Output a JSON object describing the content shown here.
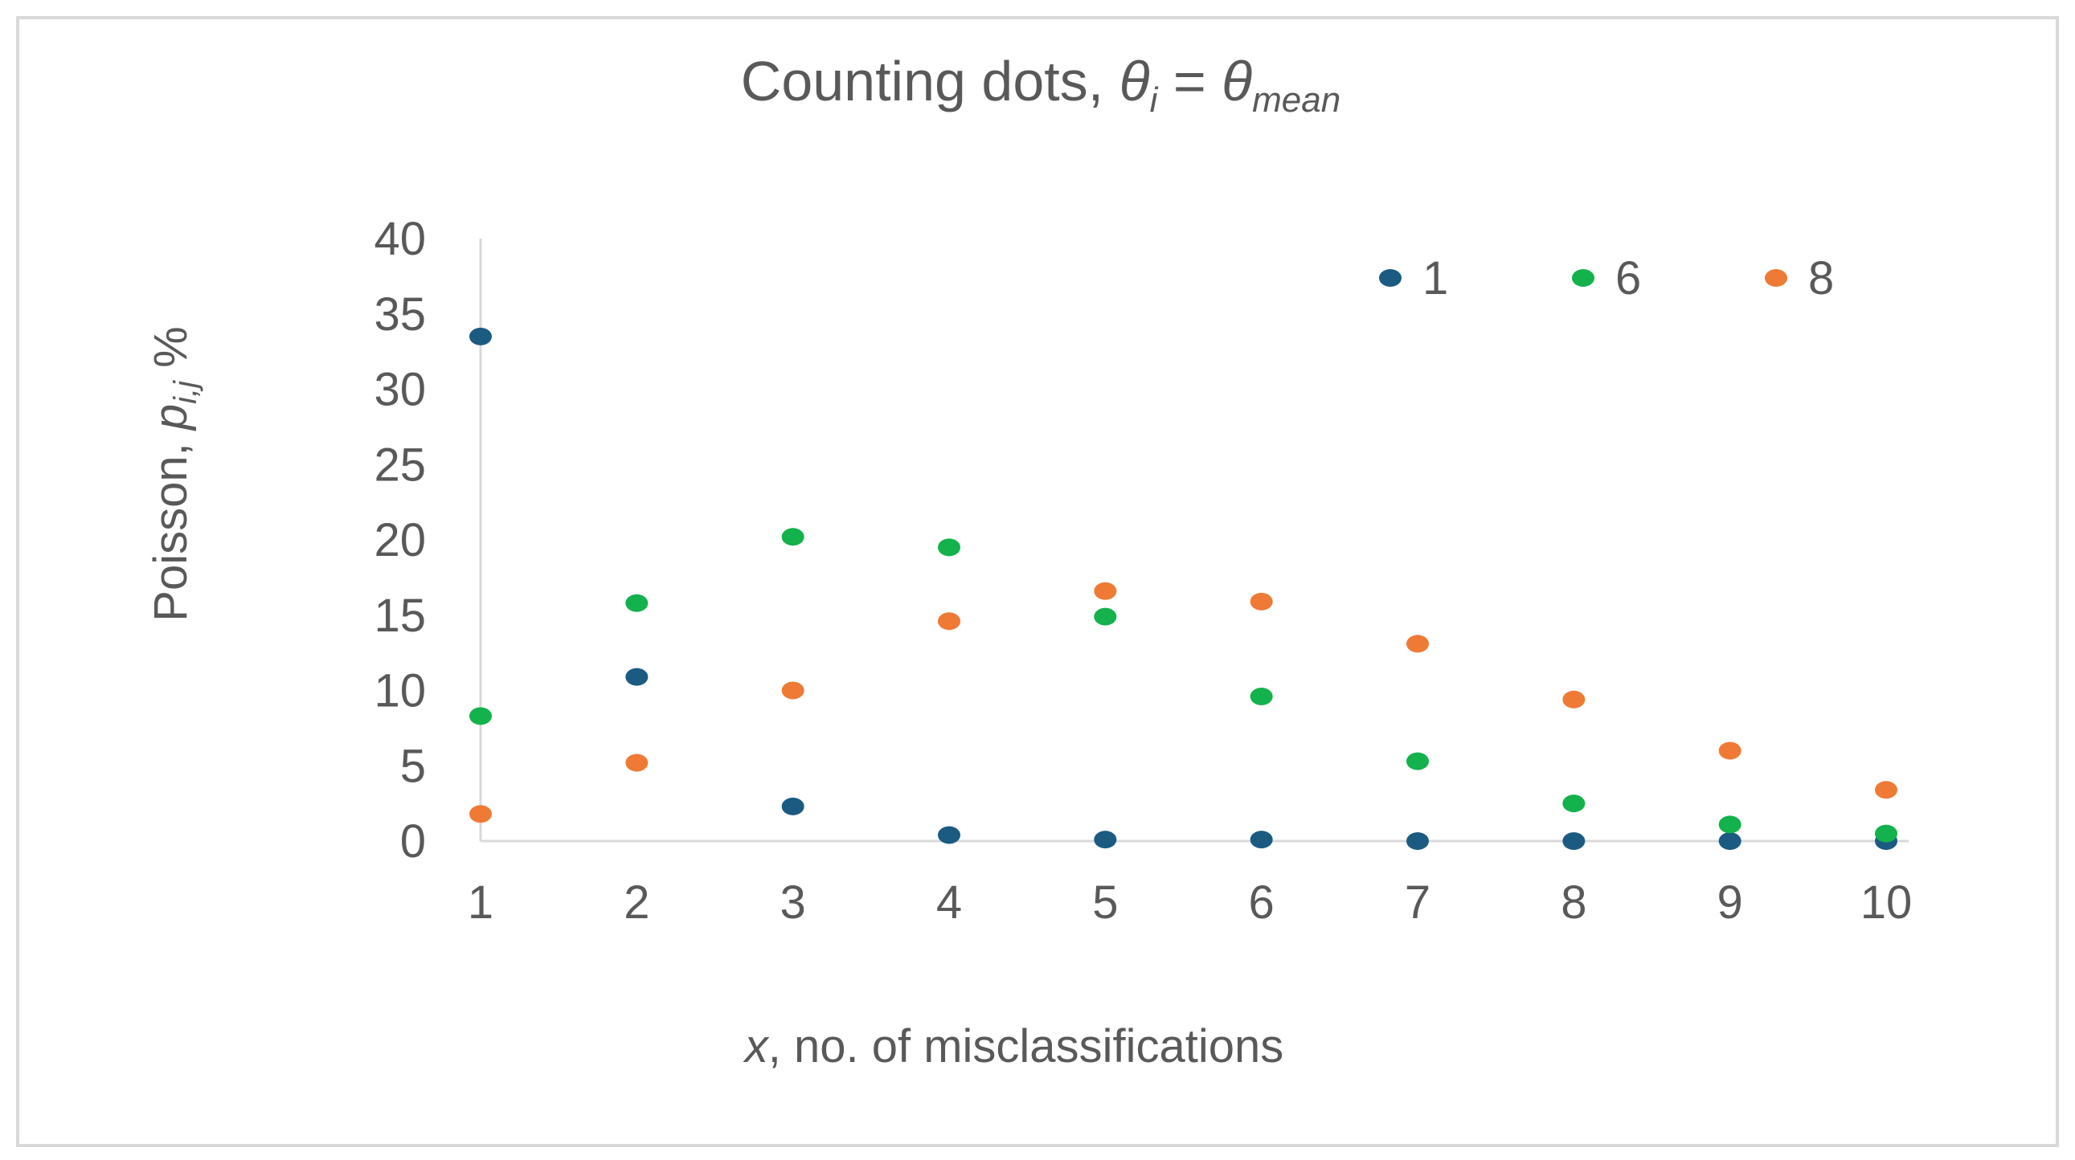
{
  "chart_data": {
    "type": "scatter",
    "title": {
      "main": "Counting dots, ",
      "theta1": "θ",
      "sub1": "i",
      "equals": " = ",
      "theta2": "θ",
      "sub2": "mean"
    },
    "xlabel": {
      "var": "x",
      "rest": ", no. of misclassifications"
    },
    "ylabel": {
      "main": "Poisson, ",
      "var": "p",
      "sub": "i,j",
      "unit": " %"
    },
    "x_ticks": [
      "1",
      "2",
      "3",
      "4",
      "5",
      "6",
      "7",
      "8",
      "9",
      "10"
    ],
    "y_ticks": [
      "0",
      "5",
      "10",
      "15",
      "20",
      "25",
      "30",
      "35",
      "40"
    ],
    "xlim": [
      1,
      10
    ],
    "ylim": [
      0,
      40
    ],
    "legend_position": "top-right",
    "grid": false,
    "x": [
      1,
      2,
      3,
      4,
      5,
      6,
      7,
      8,
      9,
      10
    ],
    "series": [
      {
        "name": "1",
        "color": "#1B5B82",
        "values": [
          33.5,
          10.9,
          2.3,
          0.4,
          0.1,
          0.1,
          0.0,
          0.0,
          0.0,
          0.0
        ]
      },
      {
        "name": "6",
        "color": "#13B24C",
        "values": [
          8.3,
          15.8,
          20.2,
          19.5,
          14.9,
          9.6,
          5.3,
          2.5,
          1.1,
          0.5
        ]
      },
      {
        "name": "8",
        "color": "#EE7A36",
        "values": [
          1.8,
          5.2,
          10.0,
          14.6,
          16.6,
          15.9,
          13.1,
          9.4,
          6.0,
          3.4
        ]
      }
    ],
    "colors": {
      "axis_line": "#D9D9D9",
      "text": "#595959",
      "border": "#D9D9D9"
    }
  }
}
